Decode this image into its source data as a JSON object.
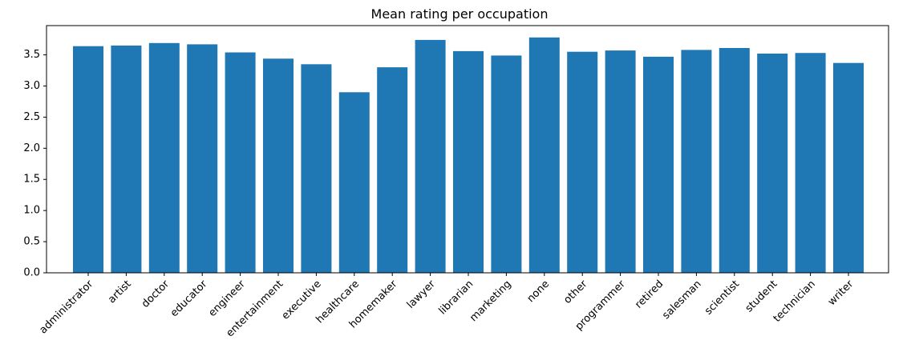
{
  "chart_data": {
    "type": "bar",
    "title": "Mean rating per occupation",
    "xlabel": "",
    "ylabel": "",
    "categories": [
      "administrator",
      "artist",
      "doctor",
      "educator",
      "engineer",
      "entertainment",
      "executive",
      "healthcare",
      "homemaker",
      "lawyer",
      "librarian",
      "marketing",
      "none",
      "other",
      "programmer",
      "retired",
      "salesman",
      "scientist",
      "student",
      "technician",
      "writer"
    ],
    "values": [
      3.64,
      3.65,
      3.69,
      3.67,
      3.54,
      3.44,
      3.35,
      2.9,
      3.3,
      3.74,
      3.56,
      3.49,
      3.78,
      3.55,
      3.57,
      3.47,
      3.58,
      3.61,
      3.52,
      3.53,
      3.37
    ],
    "yticks": [
      "0.0",
      "0.5",
      "1.0",
      "1.5",
      "2.0",
      "2.5",
      "3.0",
      "3.5"
    ],
    "ylim": [
      0,
      3.97
    ],
    "bar_color": "#1f77b4",
    "grid": false,
    "legend": "none"
  }
}
